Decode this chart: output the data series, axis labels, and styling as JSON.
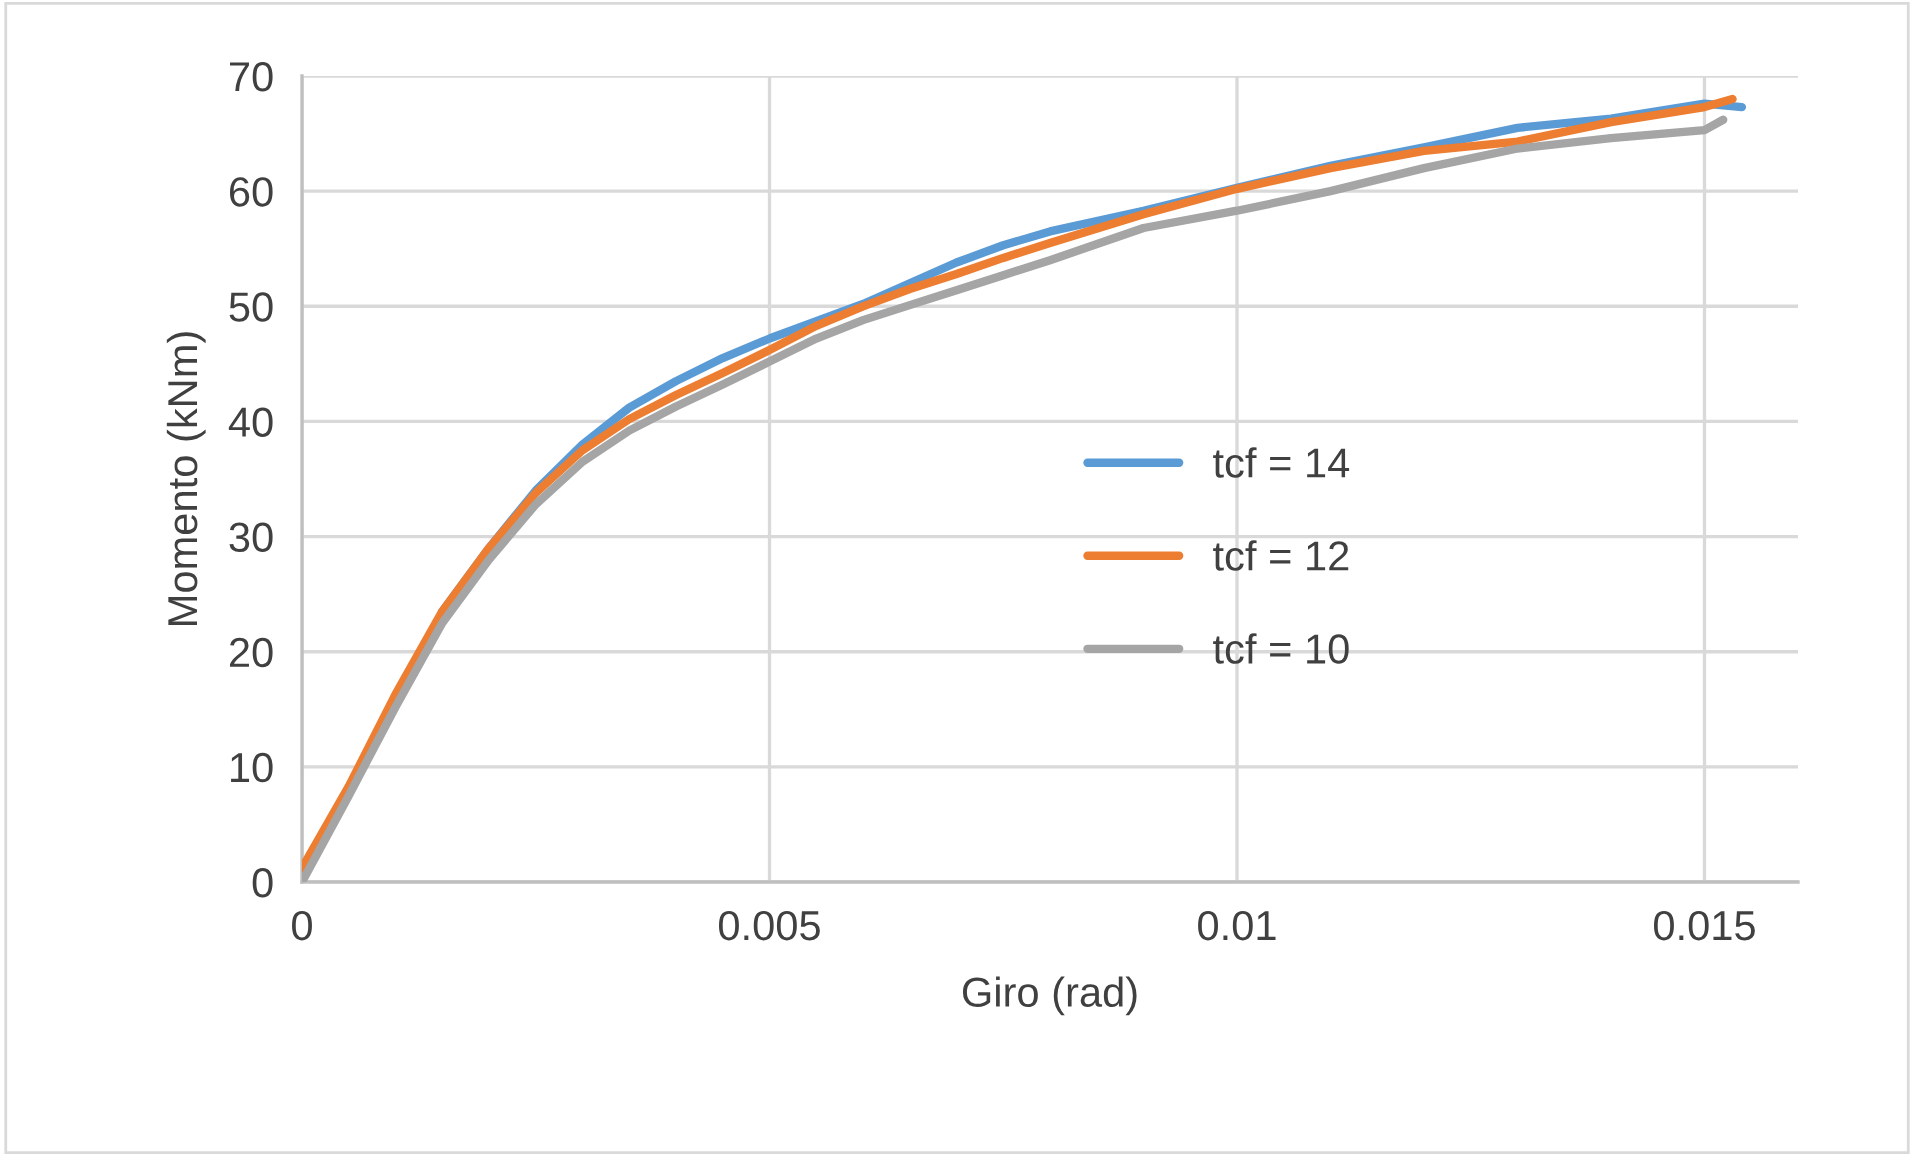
{
  "chart_data": {
    "type": "line",
    "xlabel": "Giro (rad)",
    "ylabel": "Momento (kNm)",
    "xlim": [
      0,
      0.016
    ],
    "xticks": [
      0,
      0.005,
      0.01,
      0.015
    ],
    "ylim": [
      0,
      70
    ],
    "yticks": [
      0,
      10,
      20,
      30,
      40,
      50,
      60,
      70
    ],
    "grid": true,
    "legend": "right",
    "marker": "none",
    "line_style": "solid",
    "series": [
      {
        "name": "tcf = 14",
        "color": "#5b9bd5",
        "x": [
          0.0015,
          0.002,
          0.0025,
          0.003,
          0.0035,
          0.004,
          0.0045,
          0.005,
          0.0055,
          0.006,
          0.0065,
          0.007,
          0.0075,
          0.008,
          0.009,
          0.01,
          0.011,
          0.012,
          0.013,
          0.014,
          0.015,
          0.0154
        ],
        "values": [
          23.5,
          29,
          34,
          38,
          41.2,
          43.5,
          45.5,
          47.2,
          48.7,
          50.2,
          52,
          53.8,
          55.3,
          56.5,
          58.3,
          60.3,
          62.2,
          63.8,
          65.5,
          66.3,
          67.6,
          67.3
        ]
      },
      {
        "name": "tcf = 12",
        "color": "#ed7d31",
        "x": [
          0,
          0.0005,
          0.001,
          0.0015,
          0.002,
          0.0025,
          0.003,
          0.0035,
          0.004,
          0.0045,
          0.005,
          0.0055,
          0.006,
          0.0065,
          0.007,
          0.0075,
          0.008,
          0.009,
          0.01,
          0.011,
          0.012,
          0.013,
          0.014,
          0.015,
          0.0153
        ],
        "values": [
          1.2,
          8.3,
          16.3,
          23.5,
          29,
          33.8,
          37.5,
          40.2,
          42.3,
          44.2,
          46.2,
          48.3,
          50,
          51.5,
          52.8,
          54.2,
          55.5,
          58,
          60.2,
          62,
          63.5,
          64.3,
          66,
          67.3,
          68
        ]
      },
      {
        "name": "tcf = 10",
        "color": "#a5a5a5",
        "x": [
          0,
          0.0005,
          0.001,
          0.0015,
          0.002,
          0.0025,
          0.003,
          0.0035,
          0.004,
          0.0045,
          0.005,
          0.0055,
          0.006,
          0.0065,
          0.007,
          0.0075,
          0.008,
          0.009,
          0.01,
          0.011,
          0.012,
          0.013,
          0.014,
          0.015,
          0.0152
        ],
        "values": [
          0,
          7.5,
          15.2,
          22.5,
          28,
          32.8,
          36.5,
          39.2,
          41.3,
          43.2,
          45.2,
          47.2,
          48.8,
          50.1,
          51.4,
          52.7,
          54,
          56.8,
          58.3,
          60,
          62,
          63.7,
          64.6,
          65.3,
          66.2
        ]
      }
    ]
  }
}
